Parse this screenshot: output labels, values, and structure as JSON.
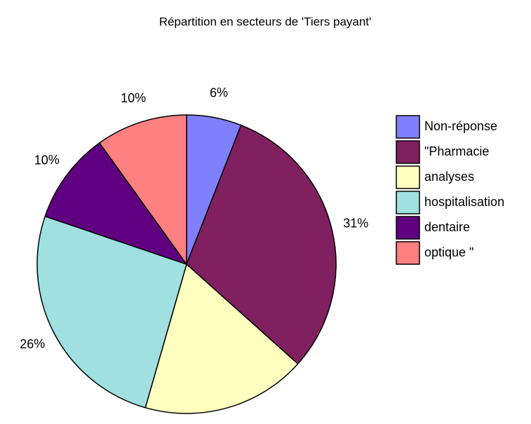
{
  "chart_data": {
    "type": "pie",
    "title": "Répartition en secteurs de 'Tiers payant'",
    "categories": [
      "Non-réponse",
      "\"Pharmacie",
      "analyses",
      "hospitalisation",
      "dentaire",
      "optique \""
    ],
    "values": [
      6,
      31,
      18,
      26,
      10,
      10
    ],
    "colors": [
      "#8080ff",
      "#802060",
      "#ffffc0",
      "#a0e0e0",
      "#600080",
      "#ff8080"
    ],
    "legend": "right"
  }
}
